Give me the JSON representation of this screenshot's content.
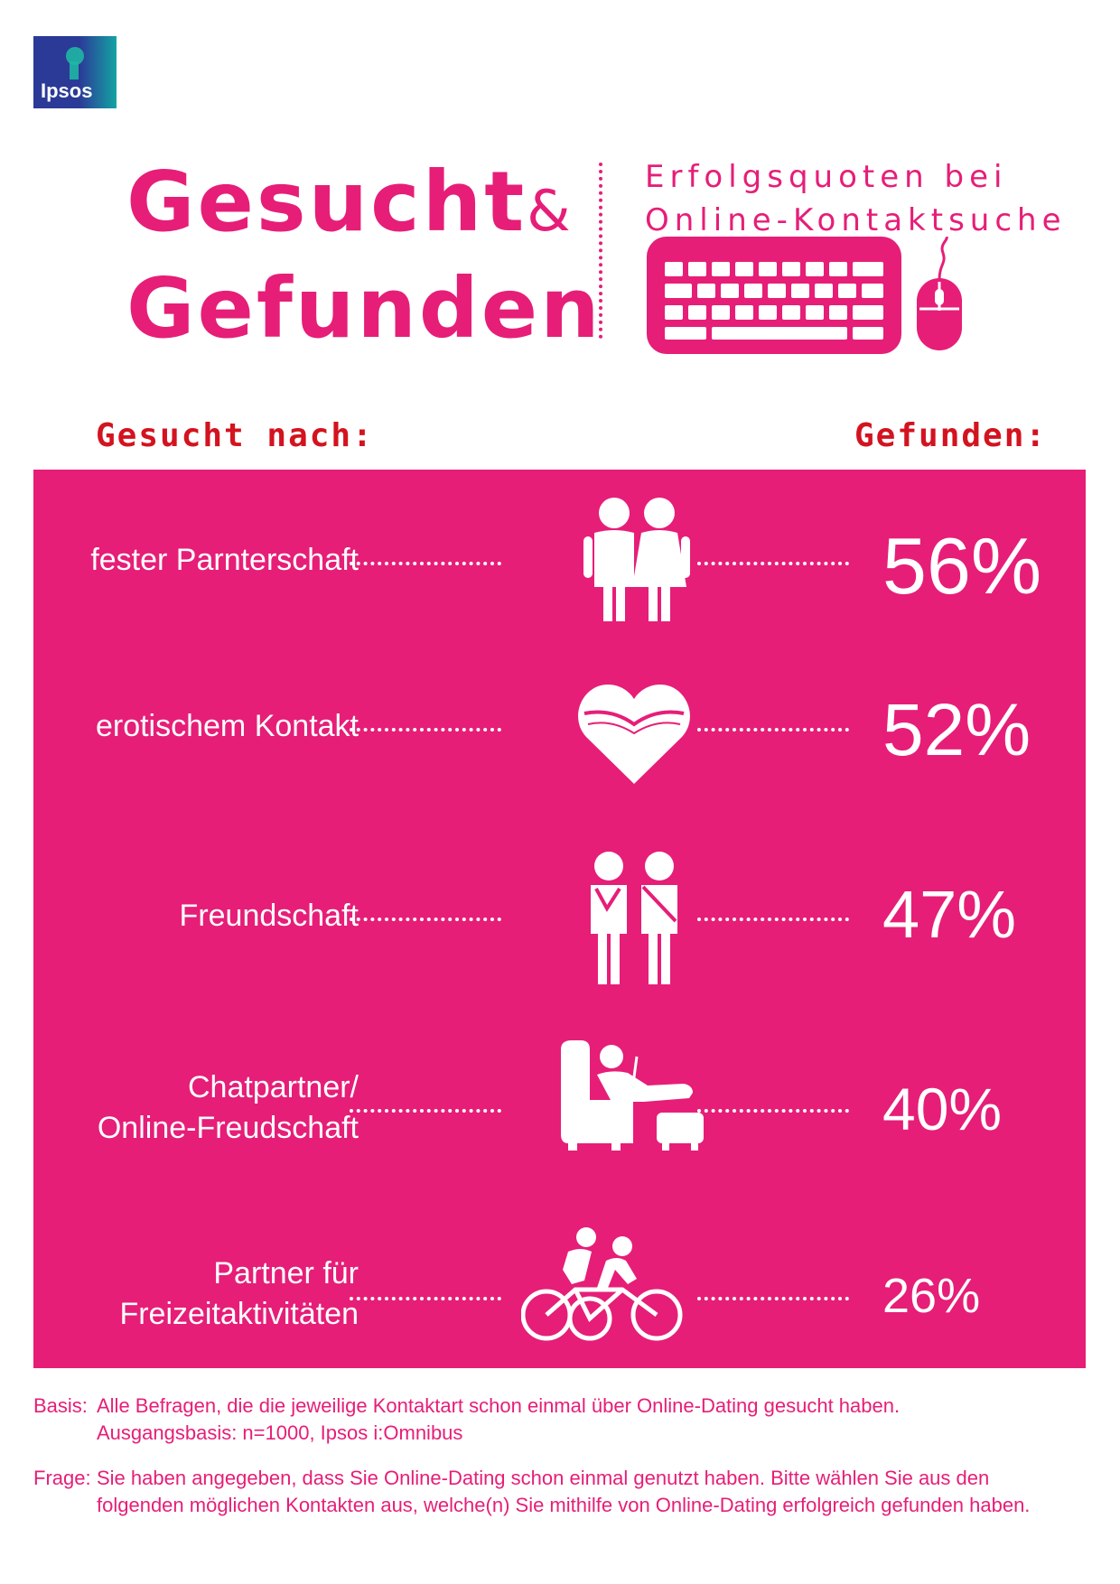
{
  "brand": {
    "logo_text": "Ipsos",
    "pink": "#e61e78",
    "red": "#d3131f"
  },
  "title": {
    "line1": "Gesucht",
    "amp": "&",
    "line2": "Gefunden"
  },
  "subtitle": {
    "line1": "Erfolgsquoten bei",
    "line2": "Online-Kontaktsuche"
  },
  "headers": {
    "left": "Gesucht nach:",
    "right": "Gefunden:"
  },
  "rows": [
    {
      "label_lines": [
        "fester Parnterschaft"
      ],
      "value": "56%",
      "icon": "couple-icon"
    },
    {
      "label_lines": [
        "erotischem Kontakt"
      ],
      "value": "52%",
      "icon": "heart-icon"
    },
    {
      "label_lines": [
        "Freundschaft"
      ],
      "value": "47%",
      "icon": "friends-icon"
    },
    {
      "label_lines": [
        "Chatpartner/",
        "Online-Freudschaft"
      ],
      "value": "40%",
      "icon": "chat-armchair-icon"
    },
    {
      "label_lines": [
        "Partner für",
        "Freizeitaktivitäten"
      ],
      "value": "26%",
      "icon": "tandem-bike-icon"
    }
  ],
  "footer": {
    "basis_key": "Basis:",
    "basis_line1": "Alle Befragen, die die jeweilige Kontaktart schon einmal über Online-Dating gesucht haben.",
    "basis_line2": "Ausgangsbasis: n=1000, Ipsos i:Omnibus",
    "frage_key": "Frage:",
    "frage_text": "Sie haben angegeben, dass Sie Online-Dating schon einmal genutzt haben. Bitte wählen Sie aus den folgenden möglichen Kontakten aus, welche(n) Sie mithilfe von Online-Dating erfolgreich gefunden haben."
  }
}
